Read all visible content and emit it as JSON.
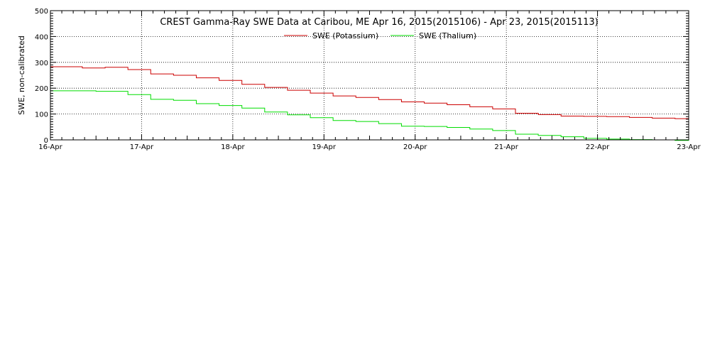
{
  "chart_data": {
    "type": "line",
    "title": "CREST Gamma-Ray SWE Data at Caribou, ME   Apr 16, 2015(2015106) - Apr 23, 2015(2015113)",
    "xlabel": "",
    "ylabel": "SWE, non-calibrated",
    "xlim": [
      0,
      7
    ],
    "ylim": [
      0,
      500
    ],
    "yticks": [
      0,
      100,
      200,
      300,
      400,
      500
    ],
    "xticks": [
      {
        "value": 0,
        "label": "16-Apr"
      },
      {
        "value": 1,
        "label": "17-Apr"
      },
      {
        "value": 2,
        "label": "18-Apr"
      },
      {
        "value": 3,
        "label": "19-Apr"
      },
      {
        "value": 4,
        "label": "20-Apr"
      },
      {
        "value": 5,
        "label": "21-Apr"
      },
      {
        "value": 6,
        "label": "22-Apr"
      },
      {
        "value": 7,
        "label": "23-Apr"
      }
    ],
    "grid": true,
    "legend_position": "top-center",
    "series": [
      {
        "name": "SWE (Potassium)",
        "color": "#cc0000",
        "points": [
          [
            0.0,
            283
          ],
          [
            0.35,
            278
          ],
          [
            0.6,
            281
          ],
          [
            0.85,
            272
          ],
          [
            1.1,
            255
          ],
          [
            1.35,
            250
          ],
          [
            1.6,
            240
          ],
          [
            1.85,
            230
          ],
          [
            2.1,
            215
          ],
          [
            2.35,
            203
          ],
          [
            2.6,
            192
          ],
          [
            2.85,
            181
          ],
          [
            3.1,
            170
          ],
          [
            3.35,
            164
          ],
          [
            3.6,
            156
          ],
          [
            3.85,
            147
          ],
          [
            4.1,
            142
          ],
          [
            4.35,
            136
          ],
          [
            4.6,
            128
          ],
          [
            4.85,
            120
          ],
          [
            5.1,
            103
          ],
          [
            5.35,
            98
          ],
          [
            5.6,
            92
          ],
          [
            5.85,
            91
          ],
          [
            6.1,
            90
          ],
          [
            6.35,
            87
          ],
          [
            6.6,
            84
          ],
          [
            6.85,
            82
          ],
          [
            7.0,
            81
          ]
        ]
      },
      {
        "name": "SWE (Thalium)",
        "color": "#00dd00",
        "points": [
          [
            0.0,
            190
          ],
          [
            0.5,
            188
          ],
          [
            0.85,
            175
          ],
          [
            1.1,
            157
          ],
          [
            1.35,
            153
          ],
          [
            1.6,
            140
          ],
          [
            1.85,
            133
          ],
          [
            2.1,
            123
          ],
          [
            2.35,
            108
          ],
          [
            2.6,
            97
          ],
          [
            2.85,
            86
          ],
          [
            3.1,
            75
          ],
          [
            3.35,
            71
          ],
          [
            3.6,
            63
          ],
          [
            3.85,
            53
          ],
          [
            4.1,
            52
          ],
          [
            4.35,
            48
          ],
          [
            4.6,
            42
          ],
          [
            4.85,
            36
          ],
          [
            5.1,
            22
          ],
          [
            5.35,
            17
          ],
          [
            5.6,
            12
          ],
          [
            5.85,
            6
          ],
          [
            6.1,
            3
          ],
          [
            6.35,
            1
          ],
          [
            6.6,
            0
          ],
          [
            6.85,
            -2
          ],
          [
            7.0,
            -3
          ]
        ]
      }
    ]
  }
}
